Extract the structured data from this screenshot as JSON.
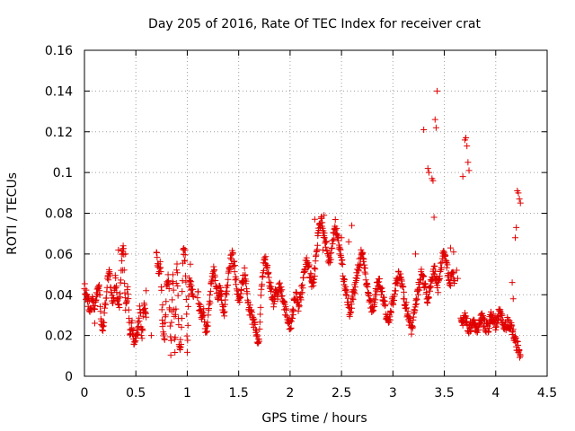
{
  "chart_data": {
    "type": "scatter",
    "title": "Day 205 of 2016, Rate Of TEC Index for receiver crat",
    "xlabel": "GPS time / hours",
    "ylabel": "ROTI / TECUs",
    "xlim": [
      0,
      4.5
    ],
    "ylim": [
      0,
      0.16
    ],
    "xticks": [
      0,
      0.5,
      1,
      1.5,
      2,
      2.5,
      3,
      3.5,
      4,
      4.5
    ],
    "yticks": [
      0,
      0.02,
      0.04,
      0.06,
      0.08,
      0.1,
      0.12,
      0.14,
      0.16
    ],
    "xtick_labels": [
      "0",
      "0.5",
      "1",
      "1.5",
      "2",
      "2.5",
      "3",
      "3.5",
      "4",
      "4.5"
    ],
    "ytick_labels": [
      "0",
      "0.02",
      "0.04",
      "0.06",
      "0.08",
      "0.1",
      "0.12",
      "0.14",
      "0.16"
    ],
    "grid": true,
    "marker": "+",
    "series": [
      {
        "name": "ROTI",
        "color": "#e00000",
        "segments": [
          [
            [
              0.0,
              0.044
            ],
            [
              0.02,
              0.039
            ],
            [
              0.04,
              0.036
            ],
            [
              0.06,
              0.033
            ],
            [
              0.08,
              0.037
            ],
            [
              0.1,
              0.031
            ],
            [
              0.12,
              0.041
            ],
            [
              0.14,
              0.045
            ],
            [
              0.16,
              0.029
            ],
            [
              0.18,
              0.022
            ],
            [
              0.2,
              0.034
            ],
            [
              0.22,
              0.045
            ],
            [
              0.24,
              0.052
            ],
            [
              0.26,
              0.041
            ],
            [
              0.28,
              0.036
            ],
            [
              0.3,
              0.047
            ],
            [
              0.32,
              0.039
            ],
            [
              0.34,
              0.032
            ],
            [
              0.36,
              0.058
            ],
            [
              0.38,
              0.065
            ],
            [
              0.4,
              0.031
            ],
            [
              0.42,
              0.044
            ],
            [
              0.44,
              0.021
            ],
            [
              0.46,
              0.026
            ],
            [
              0.48,
              0.017
            ],
            [
              0.5,
              0.019
            ],
            [
              0.52,
              0.024
            ],
            [
              0.54,
              0.033
            ],
            [
              0.56,
              0.018
            ],
            [
              0.58,
              0.036
            ],
            [
              0.6,
              0.029
            ]
          ],
          [
            [
              0.7,
              0.061
            ],
            [
              0.72,
              0.052
            ],
            [
              0.74,
              0.056
            ],
            [
              0.76,
              0.024
            ],
            [
              0.78,
              0.02
            ],
            [
              0.8,
              0.046
            ],
            [
              0.82,
              0.048
            ],
            [
              0.84,
              0.013
            ],
            [
              0.86,
              0.052
            ],
            [
              0.88,
              0.014
            ],
            [
              0.9,
              0.058
            ],
            [
              0.92,
              0.016
            ],
            [
              0.94,
              0.015
            ],
            [
              0.96,
              0.063
            ],
            [
              0.98,
              0.058
            ],
            [
              1.0,
              0.014
            ],
            [
              1.02,
              0.049
            ],
            [
              1.04,
              0.043
            ],
            [
              1.06,
              0.039
            ]
          ],
          [
            [
              1.1,
              0.041
            ],
            [
              1.12,
              0.034
            ],
            [
              1.14,
              0.029
            ],
            [
              1.16,
              0.033
            ],
            [
              1.18,
              0.022
            ],
            [
              1.2,
              0.026
            ],
            [
              1.22,
              0.037
            ],
            [
              1.24,
              0.049
            ],
            [
              1.26,
              0.052
            ],
            [
              1.28,
              0.046
            ],
            [
              1.3,
              0.039
            ],
            [
              1.32,
              0.044
            ],
            [
              1.34,
              0.036
            ],
            [
              1.36,
              0.031
            ],
            [
              1.38,
              0.042
            ],
            [
              1.4,
              0.048
            ],
            [
              1.42,
              0.057
            ],
            [
              1.44,
              0.059
            ],
            [
              1.46,
              0.053
            ],
            [
              1.48,
              0.044
            ],
            [
              1.5,
              0.037
            ],
            [
              1.52,
              0.041
            ],
            [
              1.54,
              0.047
            ],
            [
              1.56,
              0.051
            ],
            [
              1.58,
              0.043
            ],
            [
              1.6,
              0.034
            ],
            [
              1.62,
              0.031
            ],
            [
              1.64,
              0.027
            ],
            [
              1.66,
              0.024
            ],
            [
              1.68,
              0.019
            ],
            [
              1.7,
              0.016
            ],
            [
              1.72,
              0.042
            ],
            [
              1.74,
              0.053
            ],
            [
              1.76,
              0.058
            ],
            [
              1.78,
              0.052
            ],
            [
              1.8,
              0.046
            ],
            [
              1.82,
              0.041
            ],
            [
              1.84,
              0.036
            ],
            [
              1.86,
              0.043
            ],
            [
              1.88,
              0.039
            ],
            [
              1.9,
              0.046
            ],
            [
              1.92,
              0.041
            ],
            [
              1.94,
              0.035
            ],
            [
              1.96,
              0.031
            ],
            [
              1.98,
              0.027
            ],
            [
              2.0,
              0.024
            ],
            [
              2.02,
              0.029
            ],
            [
              2.04,
              0.036
            ],
            [
              2.06,
              0.041
            ],
            [
              2.08,
              0.033
            ],
            [
              2.1,
              0.038
            ],
            [
              2.12,
              0.045
            ],
            [
              2.14,
              0.051
            ],
            [
              2.16,
              0.057
            ],
            [
              2.18,
              0.054
            ],
            [
              2.2,
              0.049
            ],
            [
              2.22,
              0.044
            ],
            [
              2.24,
              0.052
            ],
            [
              2.26,
              0.064
            ],
            [
              2.28,
              0.071
            ],
            [
              2.3,
              0.076
            ],
            [
              2.32,
              0.073
            ],
            [
              2.34,
              0.067
            ],
            [
              2.36,
              0.062
            ],
            [
              2.38,
              0.056
            ],
            [
              2.4,
              0.061
            ],
            [
              2.42,
              0.068
            ],
            [
              2.44,
              0.074
            ],
            [
              2.46,
              0.069
            ],
            [
              2.48,
              0.063
            ],
            [
              2.5,
              0.057
            ],
            [
              2.52,
              0.049
            ],
            [
              2.54,
              0.044
            ],
            [
              2.56,
              0.037
            ],
            [
              2.58,
              0.031
            ],
            [
              2.6,
              0.036
            ],
            [
              2.62,
              0.041
            ],
            [
              2.64,
              0.046
            ],
            [
              2.66,
              0.052
            ],
            [
              2.68,
              0.057
            ],
            [
              2.7,
              0.062
            ],
            [
              2.72,
              0.055
            ],
            [
              2.74,
              0.047
            ],
            [
              2.76,
              0.041
            ],
            [
              2.78,
              0.036
            ],
            [
              2.8,
              0.032
            ],
            [
              2.82,
              0.037
            ],
            [
              2.84,
              0.043
            ],
            [
              2.86,
              0.048
            ],
            [
              2.88,
              0.044
            ],
            [
              2.9,
              0.039
            ],
            [
              2.92,
              0.034
            ],
            [
              2.94,
              0.029
            ],
            [
              2.96,
              0.026
            ],
            [
              2.98,
              0.032
            ],
            [
              3.0,
              0.037
            ],
            [
              3.02,
              0.042
            ],
            [
              3.04,
              0.047
            ],
            [
              3.06,
              0.051
            ],
            [
              3.08,
              0.046
            ],
            [
              3.1,
              0.041
            ],
            [
              3.12,
              0.036
            ],
            [
              3.14,
              0.031
            ],
            [
              3.16,
              0.027
            ],
            [
              3.18,
              0.023
            ],
            [
              3.2,
              0.029
            ],
            [
              3.22,
              0.035
            ],
            [
              3.24,
              0.041
            ],
            [
              3.26,
              0.046
            ],
            [
              3.28,
              0.051
            ],
            [
              3.3,
              0.047
            ],
            [
              3.32,
              0.042
            ],
            [
              3.34,
              0.038
            ],
            [
              3.36,
              0.044
            ],
            [
              3.38,
              0.049
            ],
            [
              3.4,
              0.053
            ],
            [
              3.42,
              0.048
            ],
            [
              3.44,
              0.043
            ],
            [
              3.46,
              0.052
            ],
            [
              3.48,
              0.057
            ],
            [
              3.5,
              0.061
            ],
            [
              3.52,
              0.055
            ],
            [
              3.54,
              0.049
            ],
            [
              3.56,
              0.045
            ],
            [
              3.58,
              0.051
            ],
            [
              3.6,
              0.047
            ]
          ],
          [
            [
              3.66,
              0.029
            ],
            [
              3.68,
              0.027
            ],
            [
              3.7,
              0.03
            ],
            [
              3.72,
              0.026
            ],
            [
              3.74,
              0.023
            ],
            [
              3.76,
              0.025
            ],
            [
              3.78,
              0.028
            ],
            [
              3.8,
              0.024
            ],
            [
              3.82,
              0.022
            ],
            [
              3.84,
              0.026
            ],
            [
              3.86,
              0.029
            ],
            [
              3.88,
              0.027
            ],
            [
              3.9,
              0.025
            ],
            [
              3.92,
              0.023
            ],
            [
              3.94,
              0.027
            ],
            [
              3.96,
              0.03
            ],
            [
              3.98,
              0.028
            ],
            [
              4.0,
              0.025
            ],
            [
              4.02,
              0.029
            ],
            [
              4.04,
              0.031
            ],
            [
              4.06,
              0.028
            ],
            [
              4.08,
              0.026
            ],
            [
              4.1,
              0.024
            ],
            [
              4.12,
              0.027
            ],
            [
              4.14,
              0.025
            ],
            [
              4.16,
              0.022
            ],
            [
              4.18,
              0.019
            ],
            [
              4.2,
              0.016
            ],
            [
              4.22,
              0.013
            ],
            [
              4.24,
              0.01
            ]
          ]
        ],
        "extra_points": [
          [
            0.1,
            0.026
          ],
          [
            0.33,
            0.062
          ],
          [
            0.37,
            0.052
          ],
          [
            0.4,
            0.06
          ],
          [
            0.6,
            0.042
          ],
          [
            0.65,
            0.02
          ],
          [
            0.76,
            0.035
          ],
          [
            0.98,
            0.062
          ],
          [
            1.03,
            0.055
          ],
          [
            2.24,
            0.077
          ],
          [
            2.27,
            0.069
          ],
          [
            2.32,
            0.062
          ],
          [
            2.33,
            0.079
          ],
          [
            2.5,
            0.068
          ],
          [
            2.57,
            0.066
          ],
          [
            2.6,
            0.074
          ],
          [
            3.22,
            0.06
          ],
          [
            3.3,
            0.121
          ],
          [
            3.34,
            0.102
          ],
          [
            3.35,
            0.1
          ],
          [
            3.38,
            0.097
          ],
          [
            3.39,
            0.096
          ],
          [
            3.4,
            0.078
          ],
          [
            3.41,
            0.126
          ],
          [
            3.42,
            0.122
          ],
          [
            3.43,
            0.14
          ],
          [
            3.56,
            0.063
          ],
          [
            3.59,
            0.061
          ],
          [
            3.62,
            0.052
          ],
          [
            3.63,
            0.048
          ],
          [
            3.68,
            0.098
          ],
          [
            3.7,
            0.116
          ],
          [
            3.71,
            0.117
          ],
          [
            3.72,
            0.113
          ],
          [
            3.73,
            0.105
          ],
          [
            3.74,
            0.101
          ],
          [
            4.16,
            0.046
          ],
          [
            4.17,
            0.038
          ],
          [
            4.19,
            0.068
          ],
          [
            4.2,
            0.073
          ],
          [
            4.21,
            0.091
          ],
          [
            4.22,
            0.09
          ],
          [
            4.23,
            0.087
          ],
          [
            4.24,
            0.085
          ]
        ]
      }
    ]
  }
}
